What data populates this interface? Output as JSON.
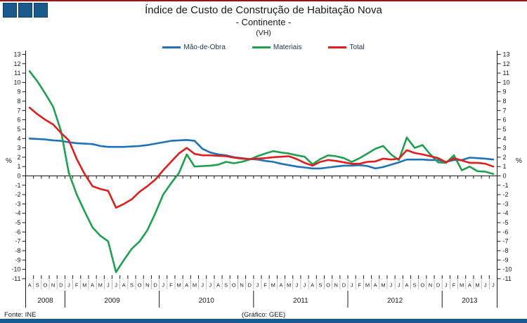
{
  "page": {
    "title_line1": "Índice de Custo de Construção de Habitação Nova",
    "title_line2": "- Continente -",
    "title_line3": "(VH)"
  },
  "footer": {
    "source": "Fonte: INE",
    "credit": "(Gráfico: GEE)"
  },
  "colors": {
    "brand_blue": "#1A5A8C",
    "top_rule_red": "#901B1B",
    "axis_black": "#1a1a1a",
    "separator_gray": "#aaaaaa"
  },
  "chart_data": {
    "type": "line",
    "title": "Índice de Custo de Construção de Habitação Nova - Continente - (VH)",
    "ylabel_left": "%",
    "ylabel_right": "%",
    "ylim": [
      -11,
      13
    ],
    "ytick_step": 1,
    "grid": false,
    "legend_position": "top",
    "x_month_letters": [
      "A",
      "S",
      "O",
      "N",
      "D",
      "J",
      "F",
      "M",
      "A",
      "M",
      "J",
      "J",
      "A",
      "S",
      "O",
      "N",
      "D",
      "J",
      "F",
      "M",
      "A",
      "M",
      "J",
      "J",
      "A",
      "S",
      "O",
      "N",
      "D",
      "J",
      "F",
      "M",
      "A",
      "M",
      "J",
      "J",
      "A",
      "S",
      "O",
      "N",
      "D",
      "J",
      "F",
      "M",
      "A",
      "M",
      "J",
      "J",
      "A",
      "S",
      "O",
      "N",
      "D",
      "J",
      "F",
      "M",
      "A",
      "M",
      "J",
      "J"
    ],
    "years": [
      {
        "label": "2008",
        "months": 5
      },
      {
        "label": "2009",
        "months": 12
      },
      {
        "label": "2010",
        "months": 12
      },
      {
        "label": "2011",
        "months": 12
      },
      {
        "label": "2012",
        "months": 12
      },
      {
        "label": "2013",
        "months": 7
      }
    ],
    "series": [
      {
        "name": "Mão-de-Obra",
        "color": "#1F72B8",
        "values": [
          4.0,
          3.95,
          3.9,
          3.8,
          3.75,
          3.6,
          3.5,
          3.45,
          3.4,
          3.2,
          3.1,
          3.1,
          3.1,
          3.15,
          3.2,
          3.3,
          3.45,
          3.6,
          3.75,
          3.8,
          3.85,
          3.75,
          2.9,
          2.5,
          2.3,
          2.2,
          2.0,
          1.9,
          1.8,
          1.75,
          1.6,
          1.5,
          1.3,
          1.15,
          1.0,
          0.9,
          0.8,
          0.8,
          0.9,
          1.0,
          1.1,
          1.1,
          1.15,
          1.05,
          0.8,
          0.95,
          1.2,
          1.45,
          1.75,
          1.75,
          1.75,
          1.7,
          1.7,
          1.5,
          1.7,
          1.7,
          1.95,
          1.9,
          1.85,
          1.75
        ]
      },
      {
        "name": "Materiais",
        "color": "#1FA050",
        "values": [
          11.2,
          10.1,
          8.8,
          7.4,
          4.8,
          0.3,
          -2.0,
          -3.8,
          -5.5,
          -6.4,
          -7.0,
          -10.3,
          -9.0,
          -7.8,
          -7.0,
          -5.8,
          -4.0,
          -2.0,
          -0.8,
          0.3,
          2.3,
          1.0,
          1.05,
          1.1,
          1.2,
          1.5,
          1.35,
          1.5,
          1.75,
          2.1,
          2.4,
          2.65,
          2.5,
          2.4,
          2.2,
          2.05,
          1.25,
          1.8,
          2.2,
          2.1,
          1.9,
          1.5,
          1.9,
          2.4,
          2.9,
          3.2,
          2.3,
          1.7,
          4.1,
          3.0,
          3.3,
          2.3,
          1.45,
          1.4,
          2.2,
          0.6,
          1.0,
          0.5,
          0.45,
          0.2
        ]
      },
      {
        "name": "Total",
        "color": "#DE1F1F",
        "values": [
          7.3,
          6.6,
          6.0,
          5.5,
          4.6,
          3.8,
          1.8,
          0.2,
          -1.1,
          -1.4,
          -1.6,
          -3.4,
          -3.0,
          -2.5,
          -1.7,
          -1.1,
          -0.4,
          0.6,
          1.5,
          2.4,
          3.0,
          2.35,
          2.2,
          2.2,
          2.15,
          2.1,
          1.95,
          1.85,
          1.8,
          1.85,
          1.9,
          2.0,
          2.05,
          2.1,
          1.8,
          1.4,
          1.1,
          1.5,
          1.7,
          1.6,
          1.45,
          1.3,
          1.3,
          1.5,
          1.55,
          1.85,
          1.75,
          1.85,
          2.75,
          2.45,
          2.3,
          2.1,
          1.9,
          1.45,
          1.9,
          1.65,
          1.4,
          1.4,
          1.3,
          1.0
        ]
      }
    ]
  }
}
